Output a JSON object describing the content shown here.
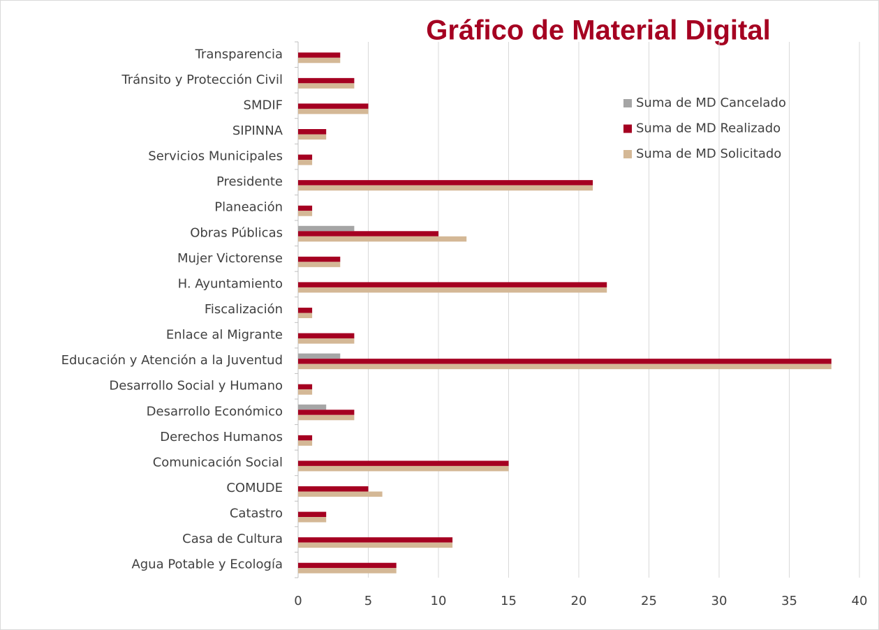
{
  "chart_data": {
    "type": "bar",
    "orientation": "horizontal",
    "title": "Gráfico de Material Digital",
    "categories": [
      "Transparencia",
      "Tránsito y Protección Civil",
      "SMDIF",
      "SIPINNA",
      "Servicios Municipales",
      "Presidente",
      "Planeación",
      "Obras Públicas",
      "Mujer Victorense",
      "H. Ayuntamiento",
      "Fiscalización",
      "Enlace al Migrante",
      "Educación y Atención a la Juventud",
      "Desarrollo Social y Humano",
      "Desarrollo Económico",
      "Derechos Humanos",
      "Comunicación Social",
      "COMUDE",
      "Catastro",
      "Casa de Cultura",
      "Agua Potable y Ecología"
    ],
    "series": [
      {
        "name": "Suma de MD Cancelado",
        "color": "#a5a5a5",
        "values": [
          null,
          null,
          null,
          null,
          null,
          null,
          null,
          4,
          null,
          null,
          null,
          null,
          3,
          null,
          2,
          null,
          null,
          null,
          null,
          null,
          null
        ]
      },
      {
        "name": "Suma de  MD Realizado",
        "color": "#a50021",
        "values": [
          3,
          4,
          5,
          2,
          1,
          21,
          1,
          10,
          3,
          22,
          1,
          4,
          38,
          1,
          4,
          1,
          15,
          5,
          2,
          11,
          7
        ]
      },
      {
        "name": "Suma de  MD Solicitado",
        "color": "#d4b896",
        "values": [
          3,
          4,
          5,
          2,
          1,
          21,
          1,
          12,
          3,
          22,
          1,
          4,
          38,
          1,
          4,
          1,
          15,
          6,
          2,
          11,
          7
        ]
      }
    ],
    "xlim": [
      0,
      40
    ],
    "xticks": [
      0,
      5,
      10,
      15,
      20,
      25,
      30,
      35,
      40
    ],
    "grid": true
  }
}
